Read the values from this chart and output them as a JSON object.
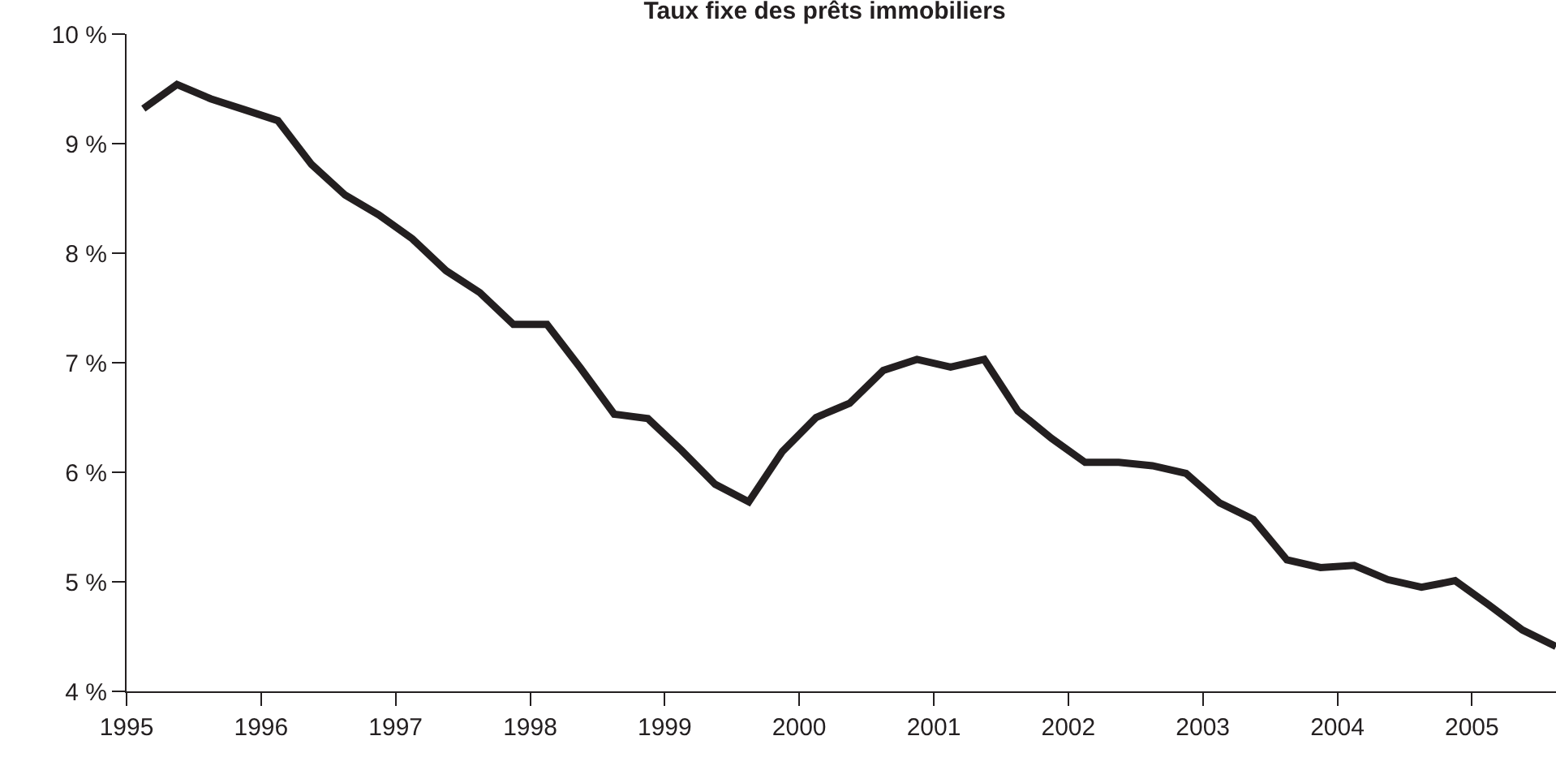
{
  "chart_data": {
    "type": "line",
    "title": "Taux fixe des prêts immobiliers",
    "x": [
      1995.125,
      1995.375,
      1995.625,
      1995.875,
      1996.125,
      1996.375,
      1996.625,
      1996.875,
      1997.125,
      1997.375,
      1997.625,
      1997.875,
      1998.125,
      1998.375,
      1998.625,
      1998.875,
      1999.125,
      1999.375,
      1999.625,
      1999.875,
      2000.125,
      2000.375,
      2000.625,
      2000.875,
      2001.125,
      2001.375,
      2001.625,
      2001.875,
      2002.125,
      2002.375,
      2002.625,
      2002.875,
      2003.125,
      2003.375,
      2003.625,
      2003.875,
      2004.125,
      2004.375,
      2004.625,
      2004.875,
      2005.125,
      2005.375,
      2005.625
    ],
    "series": [
      {
        "color": "#231f20",
        "values": [
          9.32,
          9.54,
          9.41,
          9.31,
          9.21,
          8.81,
          8.53,
          8.35,
          8.13,
          7.84,
          7.64,
          7.35,
          7.35,
          6.95,
          6.53,
          6.49,
          6.2,
          5.89,
          5.73,
          6.19,
          6.5,
          6.63,
          6.93,
          7.03,
          6.96,
          7.03,
          6.56,
          6.31,
          6.09,
          6.09,
          6.06,
          5.99,
          5.72,
          5.57,
          5.2,
          5.13,
          5.15,
          5.02,
          4.95,
          5.01,
          4.79,
          4.56,
          4.41
        ]
      }
    ],
    "xlim": [
      1995,
      2005.625
    ],
    "xticks": [
      1995,
      1996,
      1997,
      1998,
      1999,
      2000,
      2001,
      2002,
      2003,
      2004,
      2005
    ],
    "ylim": [
      4,
      10
    ],
    "yticks": [
      {
        "value": 4,
        "label": "4 %"
      },
      {
        "value": 5,
        "label": "5 %"
      },
      {
        "value": 6,
        "label": "6 %"
      },
      {
        "value": 7,
        "label": "7 %"
      },
      {
        "value": 8,
        "label": "8 %"
      },
      {
        "value": 9,
        "label": "9 %"
      },
      {
        "value": 10,
        "label": "10 %"
      }
    ],
    "marker": "none",
    "line_style": "solid"
  }
}
